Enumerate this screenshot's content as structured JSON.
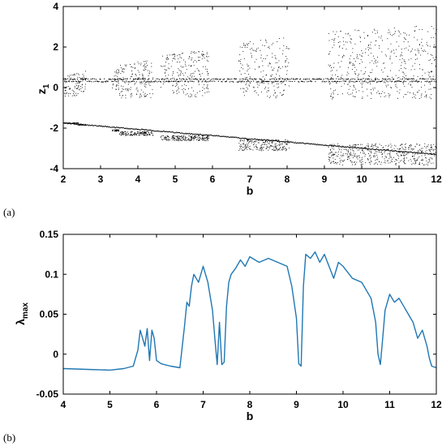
{
  "panels": {
    "a": "(a)",
    "b": "(b)"
  },
  "chart_data": [
    {
      "type": "scatter",
      "title": "",
      "xlabel": "b",
      "ylabel": "z",
      "ylabel_sub": "1",
      "xlim": [
        2,
        12
      ],
      "ylim": [
        -4,
        4
      ],
      "xticks": [
        "2",
        "3",
        "4",
        "5",
        "6",
        "7",
        "8",
        "9",
        "10",
        "11",
        "12"
      ],
      "yticks": [
        "-4",
        "-2",
        "0",
        "2",
        "4"
      ],
      "grid": false,
      "point_color": "#000000",
      "windows": [
        {
          "from": 2.0,
          "to": 2.4,
          "upper": [
            -0.4,
            0.8
          ],
          "lower": [
            -1.75,
            -1.72
          ]
        },
        {
          "from": 2.4,
          "to": 2.6,
          "upper": [
            -0.2,
            0.9
          ],
          "lower": [
            -1.85,
            -1.78
          ]
        },
        {
          "from": 3.3,
          "to": 3.5,
          "upper": [
            -0.1,
            1.0
          ],
          "lower": [
            -2.15,
            -2.05
          ]
        },
        {
          "from": 3.5,
          "to": 4.4,
          "upper": [
            -0.5,
            1.4
          ],
          "lower": [
            -2.35,
            -2.15
          ]
        },
        {
          "from": 4.6,
          "to": 5.9,
          "upper": [
            -0.45,
            1.9
          ],
          "lower": [
            -2.6,
            -2.35
          ]
        },
        {
          "from": 6.7,
          "to": 8.05,
          "upper": [
            -0.5,
            2.5
          ],
          "lower": [
            -3.1,
            -2.55
          ]
        },
        {
          "from": 9.1,
          "to": 12.0,
          "upper": [
            -0.55,
            3.1
          ],
          "lower": [
            -3.8,
            -2.75
          ]
        }
      ],
      "periodic_branches": {
        "upper": [
          0.3,
          0.6
        ],
        "lower": [
          -1.75,
          -3.3
        ]
      }
    },
    {
      "type": "line",
      "title": "",
      "xlabel": "b",
      "ylabel": "λ",
      "ylabel_sub": "max",
      "xlim": [
        4,
        12
      ],
      "ylim": [
        -0.05,
        0.15
      ],
      "xticks": [
        "4",
        "5",
        "6",
        "7",
        "8",
        "9",
        "10",
        "11",
        "12"
      ],
      "yticks": [
        "-0.05",
        "0",
        "0.05",
        "0.1",
        "0.15"
      ],
      "grid": false,
      "line_color": "#1f77b4",
      "series": [
        {
          "x": [
            4.0,
            4.5,
            5.0,
            5.3,
            5.5,
            5.6,
            5.65,
            5.7,
            5.75,
            5.8,
            5.85,
            5.9,
            5.95,
            6.0,
            6.1,
            6.3,
            6.5,
            6.6,
            6.65,
            6.7,
            6.75,
            6.8,
            6.9,
            7.0,
            7.1,
            7.2,
            7.25,
            7.3,
            7.35,
            7.4,
            7.45,
            7.5,
            7.55,
            7.6,
            7.7,
            7.8,
            7.9,
            8.0,
            8.2,
            8.4,
            8.6,
            8.8,
            8.9,
            9.0,
            9.05,
            9.1,
            9.15,
            9.2,
            9.3,
            9.4,
            9.5,
            9.6,
            9.7,
            9.8,
            9.9,
            10.0,
            10.2,
            10.4,
            10.6,
            10.7,
            10.75,
            10.8,
            10.85,
            10.9,
            11.0,
            11.1,
            11.2,
            11.3,
            11.4,
            11.5,
            11.6,
            11.7,
            11.8,
            11.85,
            11.9,
            11.95,
            12.0
          ],
          "y": [
            -0.018,
            -0.019,
            -0.02,
            -0.018,
            -0.015,
            0.005,
            0.03,
            0.02,
            0.01,
            0.032,
            -0.008,
            0.03,
            0.02,
            -0.008,
            -0.012,
            -0.015,
            -0.017,
            0.035,
            0.065,
            0.06,
            0.085,
            0.1,
            0.09,
            0.11,
            0.09,
            0.055,
            0.02,
            -0.013,
            0.04,
            -0.013,
            -0.01,
            0.06,
            0.09,
            0.1,
            0.108,
            0.118,
            0.11,
            0.122,
            0.115,
            0.12,
            0.115,
            0.11,
            0.085,
            0.045,
            -0.012,
            -0.015,
            0.085,
            0.125,
            0.12,
            0.128,
            0.115,
            0.125,
            0.11,
            0.095,
            0.115,
            0.11,
            0.095,
            0.09,
            0.07,
            0.04,
            0.0,
            -0.013,
            0.02,
            0.055,
            0.075,
            0.065,
            0.07,
            0.06,
            0.05,
            0.04,
            0.02,
            0.03,
            0.01,
            -0.005,
            -0.015,
            -0.016,
            -0.017
          ]
        }
      ]
    }
  ]
}
